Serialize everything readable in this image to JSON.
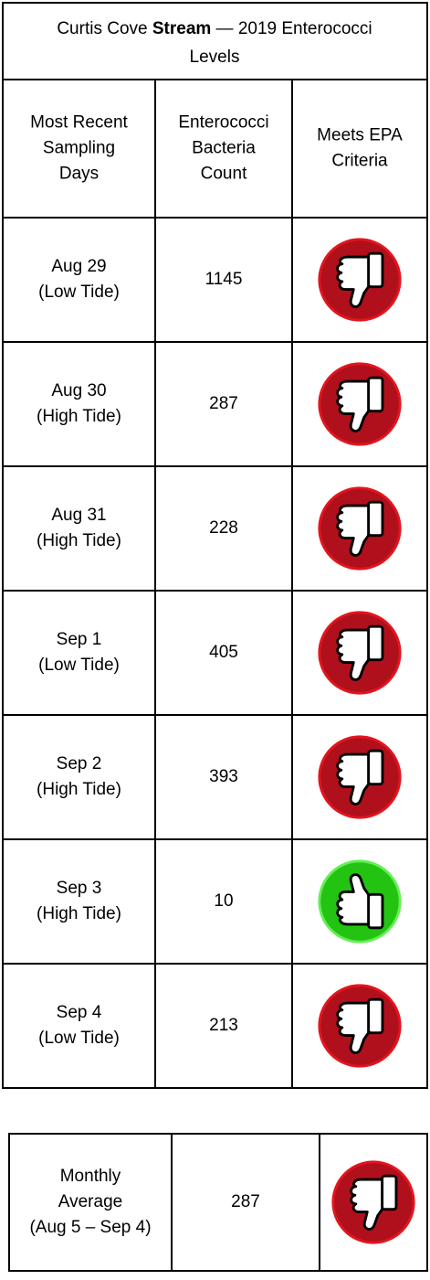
{
  "table": {
    "title": [
      "Curtis Cove ",
      "Stream",
      " — 2019 Enterococci",
      "Levels"
    ],
    "headers": [
      [
        "Most Recent",
        "Sampling",
        "Days"
      ],
      [
        "Enterococci",
        "Bacteria",
        "Count"
      ],
      [
        "Meets EPA",
        "Criteria"
      ]
    ],
    "rows": [
      {
        "day": "Aug 29",
        "tide": "(Low Tide)",
        "count": 1145,
        "meets_epa": false
      },
      {
        "day": "Aug 30",
        "tide": "(High Tide)",
        "count": 287,
        "meets_epa": false
      },
      {
        "day": "Aug 31",
        "tide": "(High Tide)",
        "count": 228,
        "meets_epa": false
      },
      {
        "day": "Sep 1",
        "tide": "(Low Tide)",
        "count": 405,
        "meets_epa": false
      },
      {
        "day": "Sep 2",
        "tide": "(High Tide)",
        "count": 393,
        "meets_epa": false
      },
      {
        "day": "Sep 3",
        "tide": "(High Tide)",
        "count": 10,
        "meets_epa": true
      },
      {
        "day": "Sep 4",
        "tide": "(Low Tide)",
        "count": 213,
        "meets_epa": false
      }
    ]
  },
  "summary": {
    "label": [
      "Monthly",
      "Average",
      "(Aug 5 – Sep 4)"
    ],
    "count": 287,
    "meets_epa": false
  }
}
